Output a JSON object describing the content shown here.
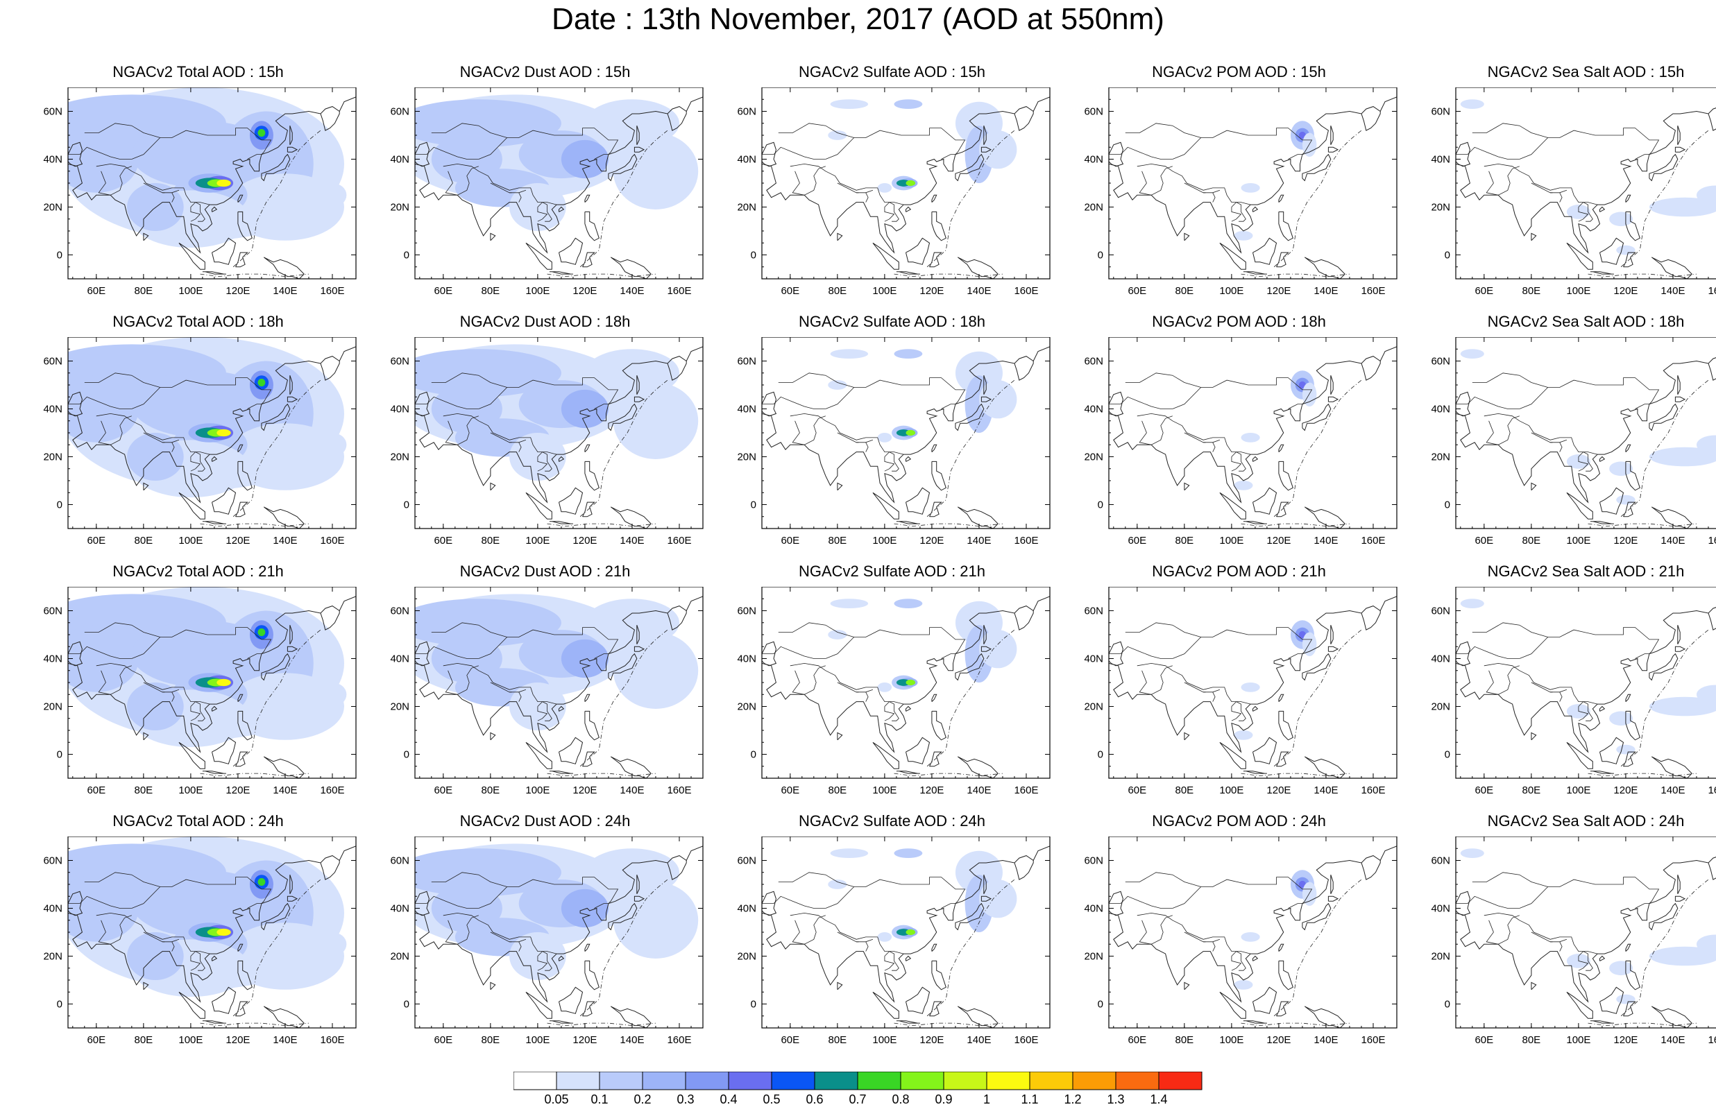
{
  "title": "Date : 13th November, 2017 (AOD at 550nm)",
  "columns": [
    "total",
    "dust",
    "sulfate",
    "pom",
    "seasalt"
  ],
  "panels": [
    [
      "NGACv2 Total AOD : 15h",
      "NGACv2 Dust AOD : 15h",
      "NGACv2 Sulfate AOD : 15h",
      "NGACv2 POM AOD : 15h",
      "NGACv2 Sea Salt AOD : 15h"
    ],
    [
      "NGACv2 Total AOD : 18h",
      "NGACv2 Dust AOD : 18h",
      "NGACv2 Sulfate AOD : 18h",
      "NGACv2 POM AOD : 18h",
      "NGACv2 Sea Salt AOD : 18h"
    ],
    [
      "NGACv2 Total AOD : 21h",
      "NGACv2 Dust AOD : 21h",
      "NGACv2 Sulfate AOD : 21h",
      "NGACv2 POM AOD : 21h",
      "NGACv2 Sea Salt AOD : 21h"
    ],
    [
      "NGACv2 Total AOD : 24h",
      "NGACv2 Dust AOD : 24h",
      "NGACv2 Sulfate AOD : 24h",
      "NGACv2 POM AOD : 24h",
      "NGACv2 Sea Salt  AOD : 24h"
    ]
  ],
  "map": {
    "lon_range": [
      48,
      170
    ],
    "lat_range": [
      -10,
      70
    ],
    "lon_ticks": [
      60,
      80,
      100,
      120,
      140,
      160
    ],
    "lon_tick_labels": [
      "60E",
      "80E",
      "100E",
      "120E",
      "140E",
      "160E"
    ],
    "lat_ticks": [
      0,
      20,
      40,
      60
    ],
    "lat_tick_labels": [
      "0",
      "20N",
      "40N",
      "60N"
    ]
  },
  "colorbar": {
    "labels": [
      "0.05",
      "0.1",
      "0.2",
      "0.3",
      "0.4",
      "0.5",
      "0.6",
      "0.7",
      "0.8",
      "0.9",
      "1",
      "1.1",
      "1.2",
      "1.3",
      "1.4"
    ],
    "colors": [
      "#ffffff",
      "#d6e2fc",
      "#b9cbfa",
      "#9db4f8",
      "#8299f4",
      "#6a6ef0",
      "#0a56f5",
      "#0a8f8a",
      "#39d625",
      "#84f41a",
      "#c8f718",
      "#fbfa10",
      "#fccb08",
      "#fb9c05",
      "#fa6b10",
      "#f82a14"
    ]
  }
}
